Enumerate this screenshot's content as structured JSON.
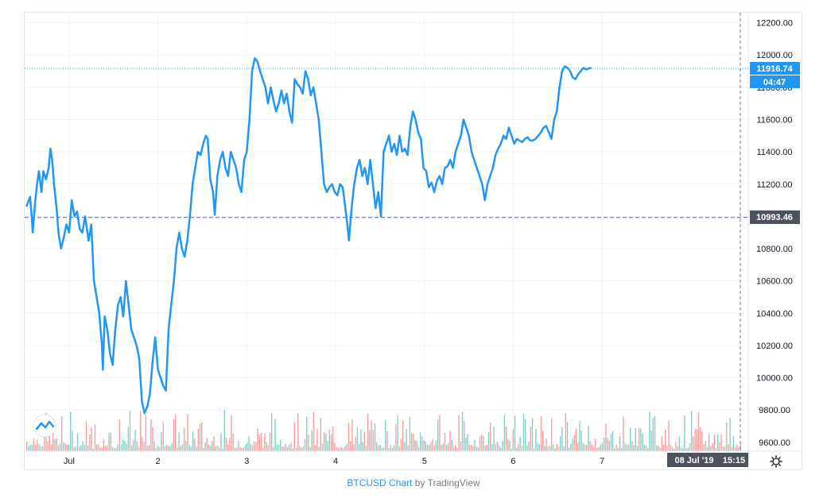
{
  "footer": {
    "symbol_link": "BTCUSD Chart",
    "by": "by",
    "brand": "TradingView"
  },
  "badges": {
    "last_price": "11916.74",
    "countdown": "04:47",
    "ref_price": "10993.46",
    "date": "08 Jul '19",
    "time": "15:15"
  },
  "colors": {
    "line": "#2196f3",
    "vol_up": "#26a69a",
    "vol_down": "#ef5350",
    "grid": "#f0f3fa",
    "badge_dark": "#4c525e"
  },
  "icons": {
    "settings": "gear-icon",
    "logo": "tradingview-logo-icon"
  },
  "chart_data": {
    "type": "line",
    "title": "BTCUSD",
    "x_ticks": [
      "Jul",
      "2",
      "3",
      "4",
      "5",
      "6",
      "7"
    ],
    "x_tick_days": [
      1,
      2,
      3,
      4,
      5,
      6,
      7
    ],
    "x_range": [
      0.5,
      8.645
    ],
    "y_ticks": [
      9600,
      9800,
      10000,
      10200,
      10400,
      10600,
      10800,
      11000,
      11200,
      11400,
      11600,
      11800,
      12000,
      12200
    ],
    "y_tick_labels": [
      "9600.00",
      "9800.00",
      "10000.00",
      "10200.00",
      "10400.00",
      "10600.00",
      "10800.00",
      "11000.00",
      "11200.00",
      "11400.00",
      "11600.00",
      "11800.00",
      "12000.00",
      "12200.00"
    ],
    "y_range": [
      9545,
      12262
    ],
    "grid": true,
    "reference_line": {
      "value": 10993.46,
      "style": "dashed"
    },
    "last_price_line": {
      "value": 11916.74,
      "style": "dotted"
    },
    "series": [
      {
        "values": [
          [
            0.52,
            11060
          ],
          [
            0.56,
            11120
          ],
          [
            0.58,
            11000
          ],
          [
            0.59,
            10900
          ],
          [
            0.62,
            11100
          ],
          [
            0.64,
            11200
          ],
          [
            0.66,
            11280
          ],
          [
            0.69,
            11150
          ],
          [
            0.71,
            11280
          ],
          [
            0.74,
            11230
          ],
          [
            0.77,
            11300
          ],
          [
            0.79,
            11420
          ],
          [
            0.81,
            11350
          ],
          [
            0.83,
            11200
          ],
          [
            0.86,
            11050
          ],
          [
            0.88,
            10900
          ],
          [
            0.91,
            10800
          ],
          [
            0.94,
            10870
          ],
          [
            0.97,
            10950
          ],
          [
            1.0,
            10900
          ],
          [
            1.03,
            11100
          ],
          [
            1.06,
            11000
          ],
          [
            1.09,
            11030
          ],
          [
            1.12,
            10920
          ],
          [
            1.15,
            10900
          ],
          [
            1.18,
            11000
          ],
          [
            1.22,
            10850
          ],
          [
            1.25,
            10950
          ],
          [
            1.28,
            10600
          ],
          [
            1.31,
            10500
          ],
          [
            1.34,
            10400
          ],
          [
            1.37,
            10200
          ],
          [
            1.38,
            10050
          ],
          [
            1.4,
            10380
          ],
          [
            1.43,
            10300
          ],
          [
            1.46,
            10150
          ],
          [
            1.49,
            10080
          ],
          [
            1.52,
            10300
          ],
          [
            1.55,
            10450
          ],
          [
            1.58,
            10500
          ],
          [
            1.61,
            10380
          ],
          [
            1.64,
            10600
          ],
          [
            1.67,
            10450
          ],
          [
            1.7,
            10300
          ],
          [
            1.73,
            10250
          ],
          [
            1.76,
            10200
          ],
          [
            1.79,
            10120
          ],
          [
            1.82,
            9850
          ],
          [
            1.85,
            9780
          ],
          [
            1.88,
            9820
          ],
          [
            1.91,
            9900
          ],
          [
            1.94,
            10100
          ],
          [
            1.97,
            10250
          ],
          [
            2.0,
            10050
          ],
          [
            2.03,
            10000
          ],
          [
            2.06,
            9950
          ],
          [
            2.09,
            9920
          ],
          [
            2.12,
            10300
          ],
          [
            2.15,
            10450
          ],
          [
            2.18,
            10600
          ],
          [
            2.21,
            10800
          ],
          [
            2.24,
            10900
          ],
          [
            2.27,
            10800
          ],
          [
            2.3,
            10750
          ],
          [
            2.33,
            10850
          ],
          [
            2.36,
            11000
          ],
          [
            2.39,
            11200
          ],
          [
            2.42,
            11300
          ],
          [
            2.45,
            11400
          ],
          [
            2.48,
            11380
          ],
          [
            2.51,
            11450
          ],
          [
            2.54,
            11500
          ],
          [
            2.56,
            11480
          ],
          [
            2.59,
            11230
          ],
          [
            2.62,
            11150
          ],
          [
            2.64,
            11010
          ],
          [
            2.67,
            11250
          ],
          [
            2.7,
            11350
          ],
          [
            2.73,
            11400
          ],
          [
            2.76,
            11300
          ],
          [
            2.79,
            11250
          ],
          [
            2.82,
            11400
          ],
          [
            2.85,
            11350
          ],
          [
            2.88,
            11300
          ],
          [
            2.91,
            11200
          ],
          [
            2.94,
            11150
          ],
          [
            2.97,
            11350
          ],
          [
            3.0,
            11400
          ],
          [
            3.03,
            11600
          ],
          [
            3.06,
            11900
          ],
          [
            3.09,
            11980
          ],
          [
            3.12,
            11960
          ],
          [
            3.15,
            11900
          ],
          [
            3.18,
            11850
          ],
          [
            3.21,
            11800
          ],
          [
            3.24,
            11700
          ],
          [
            3.27,
            11800
          ],
          [
            3.3,
            11720
          ],
          [
            3.33,
            11650
          ],
          [
            3.36,
            11700
          ],
          [
            3.39,
            11780
          ],
          [
            3.42,
            11700
          ],
          [
            3.45,
            11760
          ],
          [
            3.48,
            11650
          ],
          [
            3.51,
            11580
          ],
          [
            3.54,
            11850
          ],
          [
            3.57,
            11820
          ],
          [
            3.6,
            11800
          ],
          [
            3.63,
            11760
          ],
          [
            3.66,
            11900
          ],
          [
            3.69,
            11850
          ],
          [
            3.72,
            11750
          ],
          [
            3.75,
            11800
          ],
          [
            3.78,
            11700
          ],
          [
            3.81,
            11600
          ],
          [
            3.84,
            11400
          ],
          [
            3.87,
            11200
          ],
          [
            3.9,
            11150
          ],
          [
            3.93,
            11180
          ],
          [
            3.96,
            11200
          ],
          [
            3.99,
            11150
          ],
          [
            4.02,
            11130
          ],
          [
            4.05,
            11200
          ],
          [
            4.08,
            11180
          ],
          [
            4.11,
            11050
          ],
          [
            4.13,
            10960
          ],
          [
            4.15,
            10850
          ],
          [
            4.18,
            11050
          ],
          [
            4.21,
            11200
          ],
          [
            4.24,
            11300
          ],
          [
            4.27,
            11350
          ],
          [
            4.3,
            11250
          ],
          [
            4.33,
            11300
          ],
          [
            4.36,
            11200
          ],
          [
            4.39,
            11350
          ],
          [
            4.42,
            11200
          ],
          [
            4.45,
            11050
          ],
          [
            4.48,
            11150
          ],
          [
            4.51,
            11000
          ],
          [
            4.54,
            11400
          ],
          [
            4.57,
            11450
          ],
          [
            4.6,
            11500
          ],
          [
            4.63,
            11400
          ],
          [
            4.66,
            11450
          ],
          [
            4.69,
            11380
          ],
          [
            4.72,
            11500
          ],
          [
            4.75,
            11400
          ],
          [
            4.78,
            11420
          ],
          [
            4.81,
            11380
          ],
          [
            4.84,
            11550
          ],
          [
            4.87,
            11650
          ],
          [
            4.9,
            11600
          ],
          [
            4.93,
            11520
          ],
          [
            4.96,
            11480
          ],
          [
            4.99,
            11300
          ],
          [
            5.02,
            11280
          ],
          [
            5.05,
            11180
          ],
          [
            5.08,
            11210
          ],
          [
            5.11,
            11150
          ],
          [
            5.14,
            11220
          ],
          [
            5.17,
            11250
          ],
          [
            5.2,
            11200
          ],
          [
            5.23,
            11300
          ],
          [
            5.26,
            11310
          ],
          [
            5.29,
            11350
          ],
          [
            5.32,
            11300
          ],
          [
            5.35,
            11400
          ],
          [
            5.38,
            11450
          ],
          [
            5.41,
            11500
          ],
          [
            5.44,
            11600
          ],
          [
            5.47,
            11550
          ],
          [
            5.5,
            11500
          ],
          [
            5.53,
            11400
          ],
          [
            5.56,
            11350
          ],
          [
            5.59,
            11300
          ],
          [
            5.62,
            11250
          ],
          [
            5.65,
            11200
          ],
          [
            5.68,
            11100
          ],
          [
            5.71,
            11200
          ],
          [
            5.74,
            11250
          ],
          [
            5.77,
            11300
          ],
          [
            5.8,
            11380
          ],
          [
            5.83,
            11420
          ],
          [
            5.86,
            11450
          ],
          [
            5.89,
            11500
          ],
          [
            5.92,
            11480
          ],
          [
            5.95,
            11550
          ],
          [
            5.98,
            11500
          ],
          [
            6.01,
            11450
          ],
          [
            6.04,
            11480
          ],
          [
            6.07,
            11470
          ],
          [
            6.1,
            11460
          ],
          [
            6.13,
            11480
          ],
          [
            6.16,
            11490
          ],
          [
            6.19,
            11470
          ],
          [
            6.22,
            11470
          ],
          [
            6.25,
            11480
          ],
          [
            6.28,
            11500
          ],
          [
            6.31,
            11520
          ],
          [
            6.34,
            11550
          ],
          [
            6.37,
            11560
          ],
          [
            6.4,
            11520
          ],
          [
            6.43,
            11480
          ],
          [
            6.46,
            11600
          ],
          [
            6.49,
            11650
          ],
          [
            6.52,
            11800
          ],
          [
            6.55,
            11900
          ],
          [
            6.58,
            11930
          ],
          [
            6.61,
            11920
          ],
          [
            6.64,
            11900
          ],
          [
            6.67,
            11860
          ],
          [
            6.7,
            11850
          ],
          [
            6.73,
            11880
          ],
          [
            6.76,
            11900
          ],
          [
            6.79,
            11920
          ],
          [
            6.82,
            11910
          ],
          [
            6.85,
            11917
          ],
          [
            6.88,
            11920
          ]
        ]
      }
    ],
    "volume_note": "volume histogram at bottom of pane (green up / red down)"
  }
}
